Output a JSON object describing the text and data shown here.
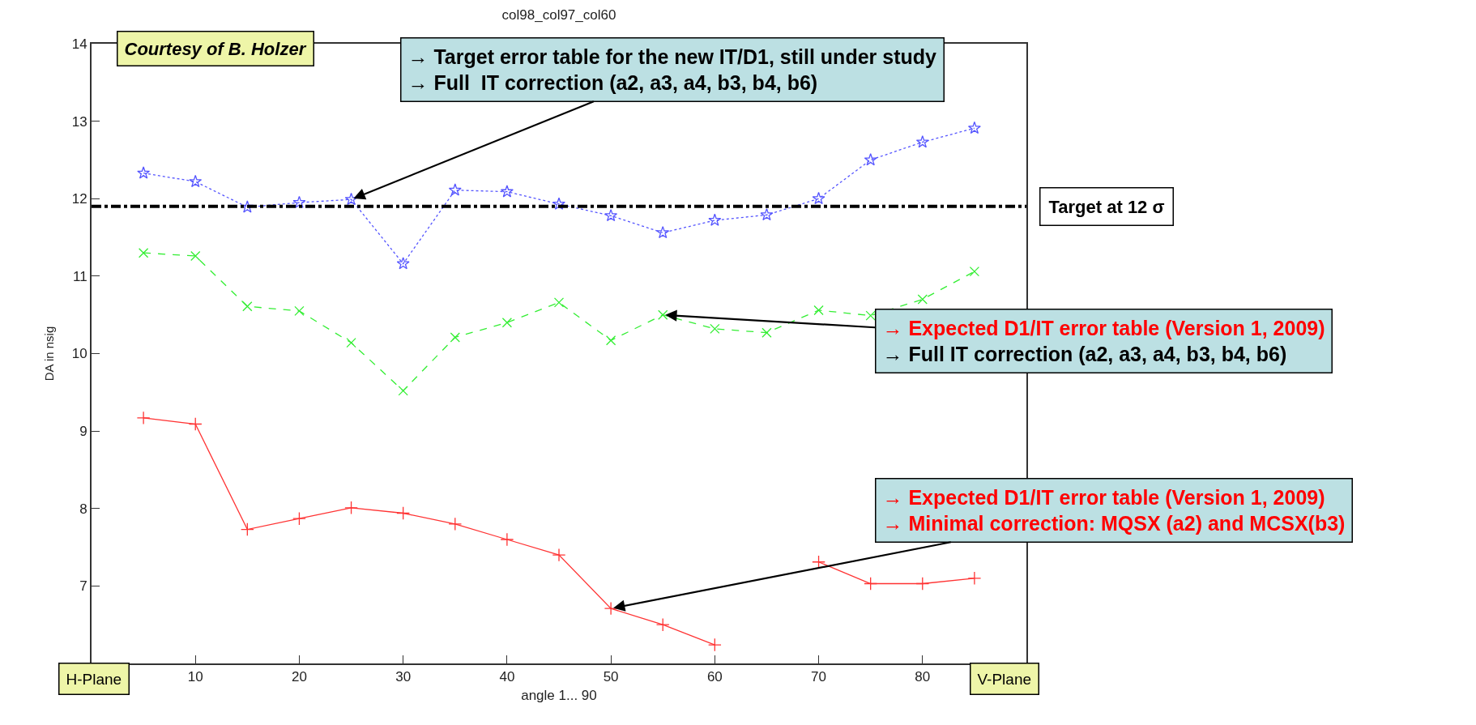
{
  "chart_data": {
    "type": "line",
    "title": "col98_col97_col60",
    "xlabel": "angle 1... 90",
    "ylabel": "DA in nsig",
    "x": [
      5,
      10,
      15,
      20,
      25,
      30,
      35,
      40,
      45,
      50,
      55,
      60,
      65,
      70,
      75,
      80,
      85
    ],
    "series": [
      {
        "color": "#5555ff",
        "marker": "star",
        "line_style": "dotted",
        "values": [
          12.33,
          12.22,
          11.89,
          11.95,
          11.99,
          11.16,
          12.11,
          12.09,
          11.93,
          11.78,
          11.56,
          11.72,
          11.79,
          12.0,
          12.5,
          12.73,
          12.91
        ]
      },
      {
        "color": "#33ee33",
        "marker": "x",
        "line_style": "dashed",
        "values": [
          11.3,
          11.26,
          10.61,
          10.55,
          10.14,
          9.52,
          10.21,
          10.4,
          10.66,
          10.17,
          10.5,
          10.32,
          10.27,
          10.56,
          10.49,
          10.7,
          11.06
        ]
      },
      {
        "color": "#ff3333",
        "marker": "cross",
        "line_style": "solid",
        "values": [
          9.17,
          9.09,
          7.73,
          7.87,
          8.01,
          7.94,
          7.8,
          7.6,
          7.4,
          6.71,
          6.5,
          6.24,
          null,
          7.31,
          7.03,
          7.03,
          7.1
        ]
      }
    ],
    "xlim": [
      0,
      90
    ],
    "xticks": [
      10,
      20,
      30,
      40,
      50,
      60,
      70,
      80
    ],
    "ylim": [
      6,
      14
    ],
    "yticks": [
      7,
      8,
      9,
      10,
      11,
      12,
      13,
      14
    ],
    "ref_lines": [
      {
        "axis": "y",
        "value": 11.9,
        "label": "Target at 12 σ",
        "color": "#000000",
        "line_style": "dashdot"
      }
    ],
    "annotations": [
      "Courtesy of B. Holzer",
      {
        "text": "→ Target error table for the new IT/D1, still under study\n→ Full  IT correction (a2, a3, a4, b3, b4, b6)",
        "x": 25,
        "y": 11.99
      },
      {
        "text": "→ Expected D1/IT error table (Version 1, 2009)\n→ Full IT correction (a2, a3, a4, b3, b4, b6)",
        "x": 55,
        "y": 10.5
      },
      {
        "text": "→ Expected D1/IT error table (Version 1, 2009)\n→ Minimal correction: MQSX (a2) and MCSX(b3)",
        "x": 50,
        "y": 6.71
      },
      "H-Plane",
      "V-Plane"
    ]
  }
}
